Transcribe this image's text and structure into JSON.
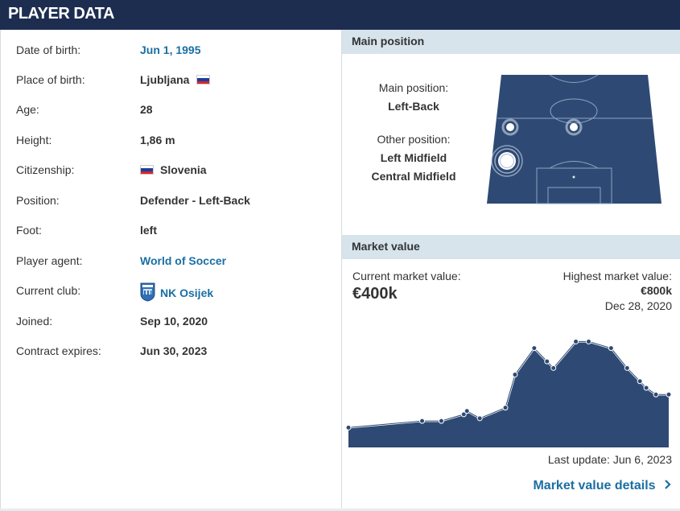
{
  "header": {
    "title": "PLAYER DATA"
  },
  "player": {
    "rows": [
      {
        "label": "Date of birth:",
        "value": "Jun 1, 1995",
        "link": true
      },
      {
        "label": "Place of birth:",
        "value": "Ljubljana",
        "flag": "slovenia"
      },
      {
        "label": "Age:",
        "value": "28"
      },
      {
        "label": "Height:",
        "value": "1,86 m"
      },
      {
        "label": "Citizenship:",
        "value": "Slovenia",
        "flag_before": "slovenia"
      },
      {
        "label": "Position:",
        "value": "Defender - Left-Back"
      },
      {
        "label": "Foot:",
        "value": "left"
      },
      {
        "label": "Player agent:",
        "value": "World of Soccer",
        "link": true
      },
      {
        "label": "Current club:",
        "value": "NK Osijek",
        "link": true,
        "crest": true
      },
      {
        "label": "Joined:",
        "value": "Sep 10, 2020"
      },
      {
        "label": "Contract expires:",
        "value": "Jun 30, 2023"
      }
    ]
  },
  "position_section": {
    "title": "Main position",
    "main_label": "Main position:",
    "main_value": "Left-Back",
    "other_label": "Other position:",
    "other_values": [
      "Left Midfield",
      "Central Midfield"
    ]
  },
  "market_section": {
    "title": "Market value",
    "current_label": "Current market value:",
    "current_value": "€400k",
    "highest_label": "Highest market value:",
    "highest_value": "€800k",
    "highest_date": "Dec 28, 2020",
    "last_update": "Last update: Jun 6, 2023",
    "details_link": "Market value details"
  },
  "colors": {
    "header_bg": "#1d2d50",
    "link": "#1a6fa3",
    "section_bg": "#d7e4ec",
    "pitch": "#2e4a74",
    "chart_fill": "#2e4a74"
  },
  "chart_data": {
    "type": "area",
    "title": "",
    "xlabel": "",
    "ylabel": "",
    "series": [
      {
        "values": [
          0.15,
          0.2,
          0.2,
          0.25,
          0.275,
          0.22,
          0.3,
          0.55,
          0.75,
          0.65,
          0.6,
          0.8,
          0.8,
          0.75,
          0.6,
          0.5,
          0.45,
          0.4,
          0.4
        ]
      }
    ],
    "ylim": [
      0,
      0.9
    ],
    "grid": false
  }
}
